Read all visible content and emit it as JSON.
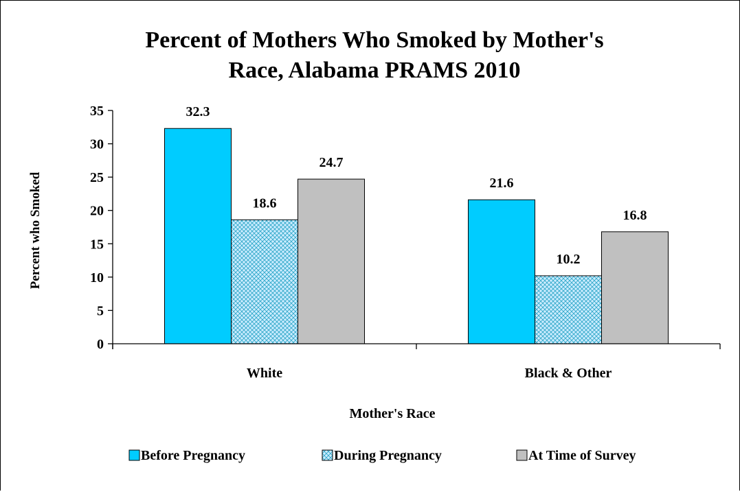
{
  "chart_data": {
    "type": "bar",
    "title_lines": [
      "Percent of Mothers Who Smoked by Mother's",
      "Race, Alabama PRAMS 2010"
    ],
    "xlabel": "Mother's Race",
    "ylabel": "Percent who Smoked",
    "ylim": [
      0,
      35
    ],
    "yticks": [
      "0",
      "5",
      "10",
      "15",
      "20",
      "25",
      "30",
      "35"
    ],
    "categories": [
      "White",
      "Black & Other"
    ],
    "series": [
      {
        "name": "Before Pregnancy",
        "values": [
          32.3,
          21.6
        ],
        "color": "#00CCFF",
        "pattern": "solid"
      },
      {
        "name": "During Pregnancy",
        "values": [
          18.6,
          10.2
        ],
        "color": "#CCECFF",
        "pattern": "crosshatch"
      },
      {
        "name": "At Time of Survey",
        "values": [
          24.7,
          16.8
        ],
        "color": "#C0C0C0",
        "pattern": "solid"
      }
    ],
    "data_labels": [
      [
        "32.3",
        "21.6"
      ],
      [
        "18.6",
        "10.2"
      ],
      [
        "24.7",
        "16.8"
      ]
    ],
    "grid": false,
    "legend_position": "bottom"
  }
}
